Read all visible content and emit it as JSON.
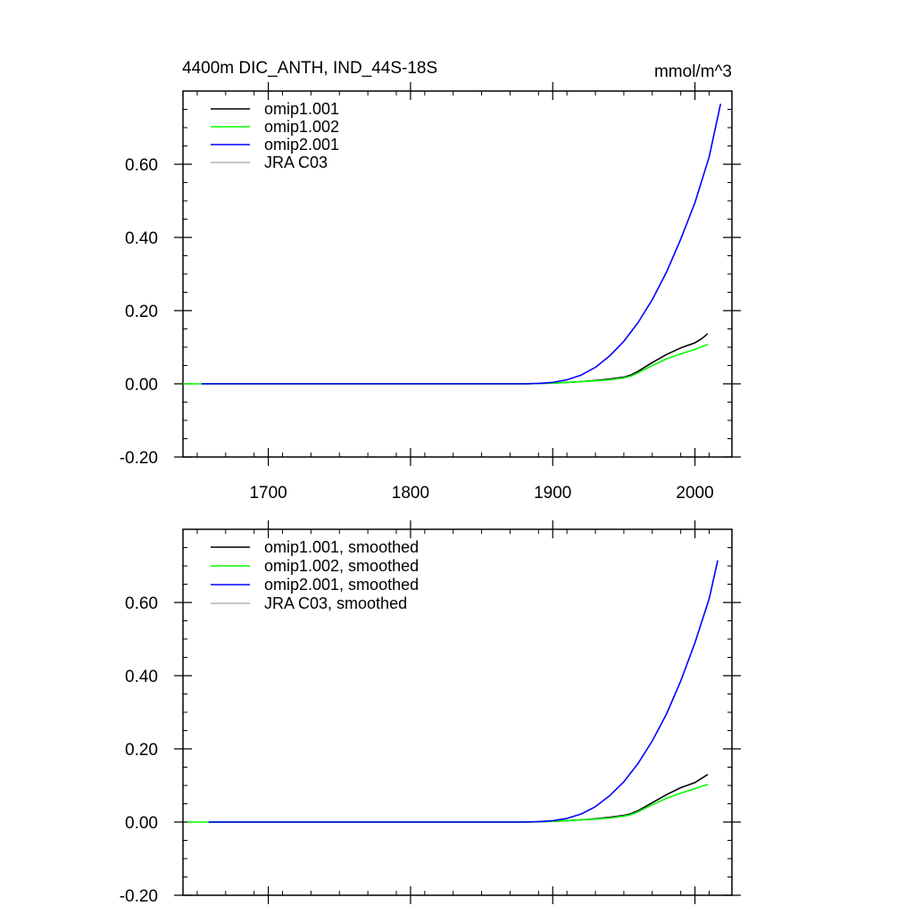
{
  "chart_data": [
    {
      "type": "line",
      "title_left": "4400m DIC_ANTH, IND_44S-18S",
      "title_right": "mmol/m^3",
      "xlim": [
        1640,
        2026
      ],
      "ylim": [
        -0.2,
        0.8
      ],
      "xticks": [
        1700,
        1800,
        1900,
        2000
      ],
      "xtick_labels": [
        "1700",
        "1800",
        "1900",
        "2000"
      ],
      "yticks": [
        -0.2,
        0.0,
        0.2,
        0.4,
        0.6
      ],
      "ytick_labels": [
        "-0.20",
        "0.00",
        "0.20",
        "0.40",
        "0.60"
      ],
      "legend_position": "top-left",
      "series": [
        {
          "name": "omip1.001",
          "color": "#000000",
          "x": [
            1653,
            1880,
            1900,
            1910,
            1920,
            1930,
            1940,
            1950,
            1955,
            1960,
            1970,
            1980,
            1990,
            2000,
            2005,
            2009
          ],
          "y": [
            0,
            0,
            0.002,
            0.004,
            0.006,
            0.009,
            0.013,
            0.018,
            0.024,
            0.034,
            0.058,
            0.08,
            0.098,
            0.112,
            0.124,
            0.137
          ]
        },
        {
          "name": "omip1.002",
          "color": "#00ff00",
          "x": [
            1640,
            1653,
            1880,
            1900,
            1910,
            1920,
            1930,
            1940,
            1950,
            1955,
            1960,
            1970,
            1980,
            1990,
            2000,
            2005,
            2009
          ],
          "y": [
            0,
            0,
            0,
            0.002,
            0.004,
            0.006,
            0.008,
            0.011,
            0.016,
            0.021,
            0.03,
            0.05,
            0.068,
            0.082,
            0.094,
            0.102,
            0.108
          ]
        },
        {
          "name": "omip2.001",
          "color": "#0000ff",
          "x": [
            1653,
            1880,
            1890,
            1900,
            1910,
            1920,
            1930,
            1940,
            1950,
            1960,
            1970,
            1980,
            1990,
            2000,
            2010,
            2018
          ],
          "y": [
            0,
            0,
            0.001,
            0.004,
            0.011,
            0.024,
            0.045,
            0.076,
            0.116,
            0.167,
            0.23,
            0.305,
            0.395,
            0.495,
            0.62,
            0.765
          ]
        },
        {
          "name": "JRA C03",
          "color": "#b4b4b4",
          "x": [],
          "y": []
        }
      ]
    },
    {
      "type": "line",
      "xlim": [
        1640,
        2026
      ],
      "ylim": [
        -0.2,
        0.8
      ],
      "xticks": [
        1700,
        1800,
        1900,
        2000
      ],
      "yticks": [
        -0.2,
        0.0,
        0.2,
        0.4,
        0.6
      ],
      "ytick_labels": [
        "-0.20",
        "0.00",
        "0.20",
        "0.40",
        "0.60"
      ],
      "legend_position": "top-left",
      "series": [
        {
          "name": "omip1.001, smoothed",
          "color": "#000000",
          "x": [
            1658,
            1880,
            1900,
            1910,
            1920,
            1930,
            1940,
            1950,
            1955,
            1960,
            1970,
            1980,
            1990,
            2000,
            2005,
            2009
          ],
          "y": [
            0,
            0,
            0.002,
            0.004,
            0.006,
            0.009,
            0.013,
            0.018,
            0.023,
            0.031,
            0.053,
            0.075,
            0.094,
            0.108,
            0.12,
            0.13
          ]
        },
        {
          "name": "omip1.002, smoothed",
          "color": "#00ff00",
          "x": [
            1643,
            1658,
            1880,
            1900,
            1910,
            1920,
            1930,
            1940,
            1950,
            1955,
            1960,
            1970,
            1980,
            1990,
            2000,
            2005,
            2009
          ],
          "y": [
            0,
            0,
            0,
            0.002,
            0.004,
            0.006,
            0.008,
            0.011,
            0.016,
            0.02,
            0.028,
            0.047,
            0.065,
            0.079,
            0.091,
            0.098,
            0.103
          ]
        },
        {
          "name": "omip2.001, smoothed",
          "color": "#0000ff",
          "x": [
            1658,
            1880,
            1890,
            1900,
            1910,
            1920,
            1930,
            1940,
            1950,
            1960,
            1970,
            1980,
            1990,
            2000,
            2010,
            2016
          ],
          "y": [
            0,
            0,
            0.001,
            0.004,
            0.01,
            0.022,
            0.042,
            0.072,
            0.11,
            0.16,
            0.222,
            0.295,
            0.385,
            0.49,
            0.61,
            0.715
          ]
        },
        {
          "name": "JRA C03, smoothed",
          "color": "#b4b4b4",
          "x": [],
          "y": []
        }
      ]
    }
  ]
}
